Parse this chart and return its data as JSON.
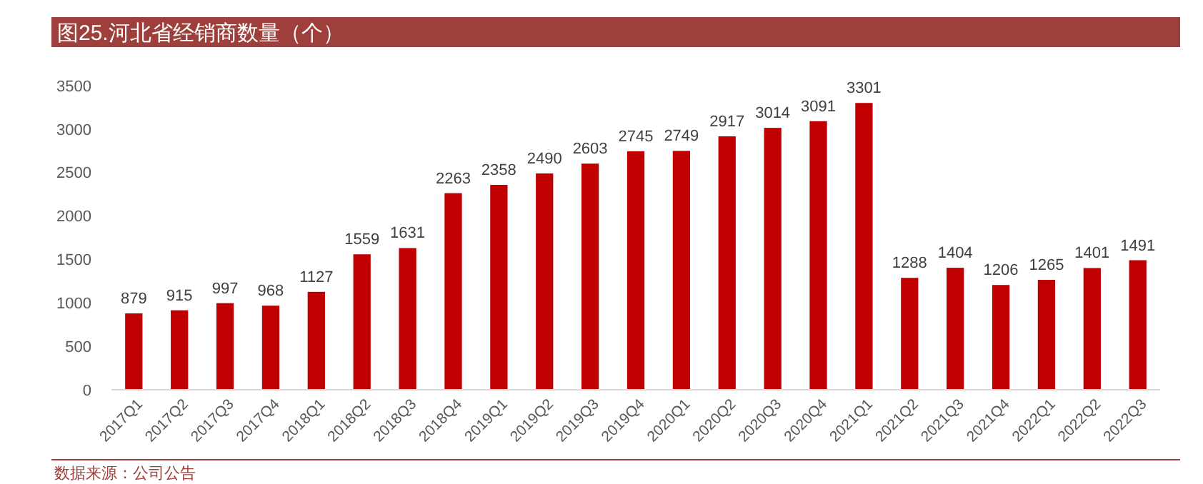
{
  "chart_data": {
    "type": "bar",
    "title": "图25.河北省经销商数量（个）",
    "annotations": [
      "数据来源：公司公告"
    ],
    "categories": [
      "2017Q1",
      "2017Q2",
      "2017Q3",
      "2017Q4",
      "2018Q1",
      "2018Q2",
      "2018Q3",
      "2018Q4",
      "2019Q1",
      "2019Q2",
      "2019Q3",
      "2019Q4",
      "2020Q1",
      "2020Q2",
      "2020Q3",
      "2020Q4",
      "2021Q1",
      "2021Q2",
      "2021Q3",
      "2021Q4",
      "2022Q1",
      "2022Q2",
      "2022Q3"
    ],
    "values": [
      879,
      915,
      997,
      968,
      1127,
      1559,
      1631,
      2263,
      2358,
      2490,
      2603,
      2745,
      2749,
      2917,
      3014,
      3091,
      3301,
      1288,
      1404,
      1206,
      1265,
      1401,
      1491
    ],
    "color": "#c00000",
    "ylim": [
      0,
      3500
    ],
    "yticks": [
      0,
      500,
      1000,
      1500,
      2000,
      2500,
      3000,
      3500
    ],
    "grid": false,
    "data_labels": true
  }
}
